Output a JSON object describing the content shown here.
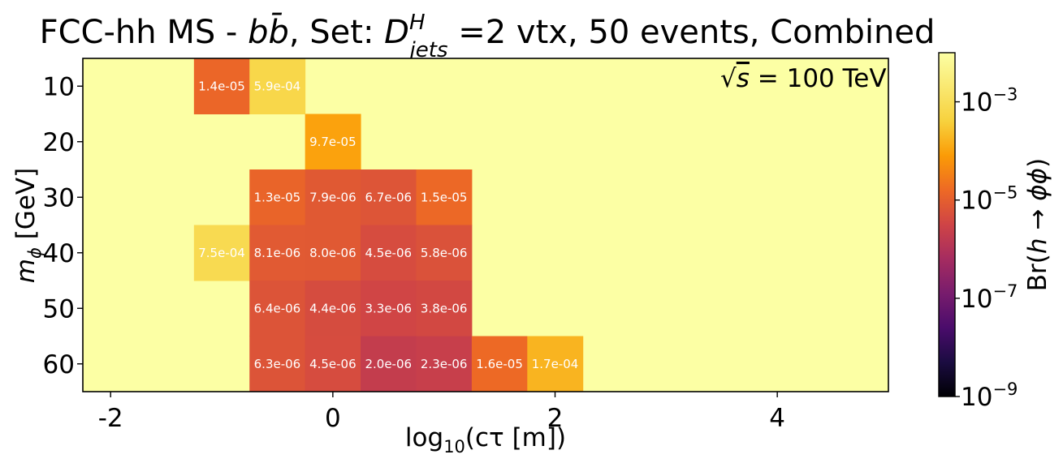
{
  "chart_data": {
    "type": "heatmap",
    "title": "FCC-hh MS - bb̄, Set: D_jets^H =2 vtx, 50 events, Combined",
    "title_parts": {
      "prefix": "FCC-hh MS - ",
      "process_b": "b",
      "process_bbar": "b̄",
      "set_label": ", Set: ",
      "var_D": "D",
      "var_sup": "H",
      "var_sub": "jets",
      "suffix": " =2 vtx, 50 events, Combined"
    },
    "annotation": {
      "sqrt": "√",
      "s": "s",
      "text": " = 100 TeV"
    },
    "xlabel": "log₁₀(cτ [m])",
    "ylabel": "mϕ [GeV]",
    "xlabel_parts": {
      "pre": "log",
      "sub": "10",
      "post": "(cτ [m])"
    },
    "ylabel_parts": {
      "m": "m",
      "sub": "ϕ",
      "post": " [GeV]"
    },
    "x_ticks": [
      -2,
      0,
      2,
      4
    ],
    "x_tick_labels": [
      "-2",
      "0",
      "2",
      "4"
    ],
    "y_categories": [
      "10",
      "20",
      "30",
      "40",
      "50",
      "60"
    ],
    "xlim": [
      -2.25,
      5.0
    ],
    "x_bin_width": 0.5,
    "colorbar": {
      "label": "Br(h → ϕϕ)",
      "label_parts": {
        "pre": "Br(",
        "h": "h",
        "arrow": " → ",
        "phiphi": "ϕϕ",
        "post": ")"
      },
      "scale": "log",
      "range": [
        1e-09,
        0.01
      ],
      "ticks": [
        {
          "base": "10",
          "exp": "−3",
          "value": 0.001
        },
        {
          "base": "10",
          "exp": "−5",
          "value": 1e-05
        },
        {
          "base": "10",
          "exp": "−7",
          "value": 1e-07
        },
        {
          "base": "10",
          "exp": "−9",
          "value": 1e-09
        }
      ],
      "colormap": "inferno"
    },
    "background_value": 0.01,
    "cells": [
      {
        "row": 0,
        "x": -1.0,
        "value": 1.4e-05,
        "label": "1.4e-05"
      },
      {
        "row": 0,
        "x": -0.5,
        "value": 0.00059,
        "label": "5.9e-04"
      },
      {
        "row": 1,
        "x": 0.0,
        "value": 9.7e-05,
        "label": "9.7e-05"
      },
      {
        "row": 2,
        "x": -0.5,
        "value": 1.3e-05,
        "label": "1.3e-05"
      },
      {
        "row": 2,
        "x": 0.0,
        "value": 7.9e-06,
        "label": "7.9e-06"
      },
      {
        "row": 2,
        "x": 0.5,
        "value": 6.7e-06,
        "label": "6.7e-06"
      },
      {
        "row": 2,
        "x": 1.0,
        "value": 1.5e-05,
        "label": "1.5e-05"
      },
      {
        "row": 3,
        "x": -1.0,
        "value": 0.00075,
        "label": "7.5e-04"
      },
      {
        "row": 3,
        "x": -0.5,
        "value": 8.1e-06,
        "label": "8.1e-06"
      },
      {
        "row": 3,
        "x": 0.0,
        "value": 8e-06,
        "label": "8.0e-06"
      },
      {
        "row": 3,
        "x": 0.5,
        "value": 4.5e-06,
        "label": "4.5e-06"
      },
      {
        "row": 3,
        "x": 1.0,
        "value": 5.8e-06,
        "label": "5.8e-06"
      },
      {
        "row": 4,
        "x": -0.5,
        "value": 6.4e-06,
        "label": "6.4e-06"
      },
      {
        "row": 4,
        "x": 0.0,
        "value": 4.4e-06,
        "label": "4.4e-06"
      },
      {
        "row": 4,
        "x": 0.5,
        "value": 3.3e-06,
        "label": "3.3e-06"
      },
      {
        "row": 4,
        "x": 1.0,
        "value": 3.8e-06,
        "label": "3.8e-06"
      },
      {
        "row": 5,
        "x": -0.5,
        "value": 6.3e-06,
        "label": "6.3e-06"
      },
      {
        "row": 5,
        "x": 0.0,
        "value": 4.5e-06,
        "label": "4.5e-06"
      },
      {
        "row": 5,
        "x": 0.5,
        "value": 2e-06,
        "label": "2.0e-06"
      },
      {
        "row": 5,
        "x": 1.0,
        "value": 2.3e-06,
        "label": "2.3e-06"
      },
      {
        "row": 5,
        "x": 1.5,
        "value": 1.6e-05,
        "label": "1.6e-05"
      },
      {
        "row": 5,
        "x": 2.0,
        "value": 0.00017,
        "label": "1.7e-04"
      }
    ]
  }
}
